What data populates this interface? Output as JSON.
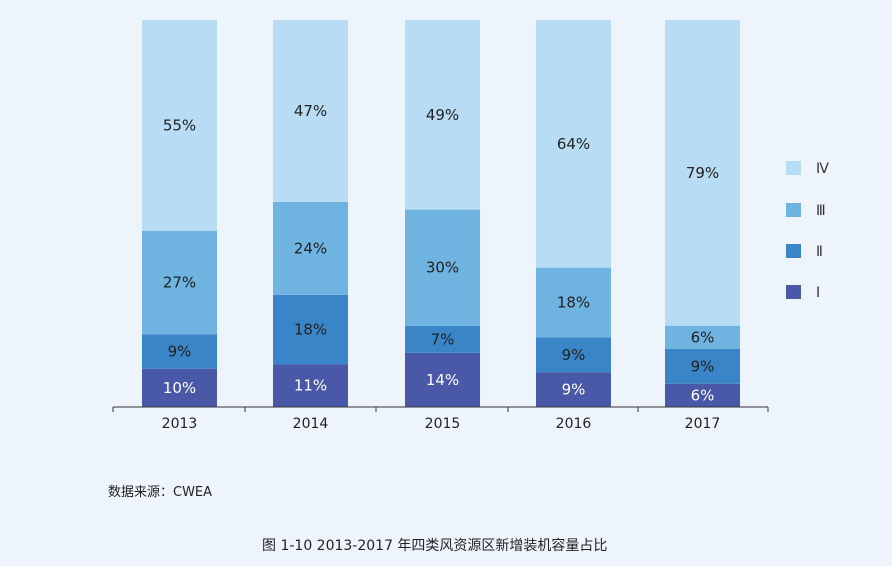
{
  "chart_data": {
    "type": "bar",
    "stacked": true,
    "categories": [
      "2013",
      "2014",
      "2015",
      "2016",
      "2017"
    ],
    "series": [
      {
        "name": "Ⅰ",
        "color": "#4a58a8",
        "values": [
          10,
          11,
          14,
          9,
          6
        ],
        "label_color": "#ffffff"
      },
      {
        "name": "Ⅱ",
        "color": "#3a85c8",
        "values": [
          9,
          18,
          7,
          9,
          9
        ],
        "label_color": "#222222"
      },
      {
        "name": "Ⅲ",
        "color": "#6fb3e0",
        "values": [
          27,
          24,
          30,
          18,
          6
        ],
        "label_color": "#222222"
      },
      {
        "name": "Ⅳ",
        "color": "#b8dcf3",
        "values": [
          55,
          47,
          49,
          64,
          79
        ],
        "label_color": "#222222"
      }
    ],
    "value_suffix": "%",
    "legend_position": "right",
    "ylim": [
      0,
      100
    ],
    "title": "图 1-10  2013-2017 年四类风资源区新增装机容量占比",
    "source": "数据来源：CWEA"
  }
}
